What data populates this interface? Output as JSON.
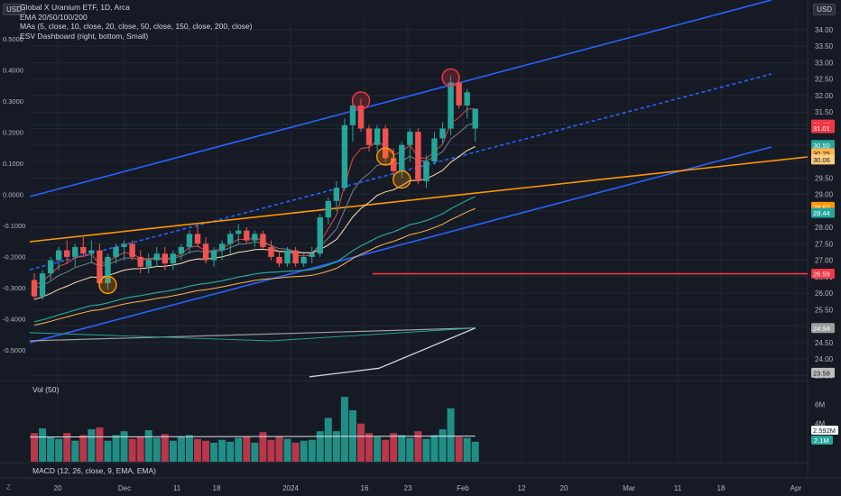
{
  "header": {
    "currency_left": "USD",
    "currency_right": "USD",
    "title": "Global X Uranium ETF, 1D, Arca",
    "indicators": [
      "EMA 20/50/100/200",
      "MAs (5, close, 10, close, 20, close, 50, close, 150, close, 200, close)",
      "ESV Dashboard (right, bottom, Small)"
    ]
  },
  "volume_label": "Vol (50)",
  "macd_label": "MACD (12, 26, close, 9, EMA, EMA)",
  "corner_label": "Z",
  "colors": {
    "background": "#161a25",
    "up": "#26a69a",
    "down": "#ef5350",
    "channel": "#2962ff",
    "trendline": "#ff9800",
    "support": "#f23645",
    "grid": "#222632"
  },
  "chart_data": {
    "type": "candlestick",
    "price_axis": {
      "ticks": [
        "34.00",
        "33.50",
        "33.00",
        "32.50",
        "32.00",
        "31.50",
        "31.00",
        "30.50",
        "30.00",
        "29.50",
        "29.00",
        "28.50",
        "28.00",
        "27.50",
        "27.00",
        "26.50",
        "26.00",
        "25.50",
        "25.00",
        "24.50",
        "24.00",
        "23.50"
      ],
      "range": [
        23.4,
        34.3
      ]
    },
    "left_axis": {
      "ticks": [
        "0.5000",
        "0.4000",
        "0.3000",
        "0.2000",
        "0.1000",
        "0.0000",
        "-0.1000",
        "-0.2000",
        "-0.3000",
        "-0.4000",
        "-0.5000"
      ]
    },
    "time_axis": {
      "ticks": [
        "20",
        "Dec",
        "11",
        "18",
        "2024",
        "16",
        "23",
        "Feb",
        "12",
        "20",
        "Mar",
        "11",
        "18",
        "Apr"
      ]
    },
    "price_labels": [
      {
        "value": 31.12,
        "text": "31.12",
        "color": "#f23645"
      },
      {
        "value": 31.01,
        "text": "31.01",
        "color": "#f23645"
      },
      {
        "value": 30.5,
        "text": "30.50",
        "color": "#26a69a"
      },
      {
        "value": 30.25,
        "text": "30.25",
        "color": "#ffb74d"
      },
      {
        "value": 30.06,
        "text": "30.06",
        "color": "#ffcc80"
      },
      {
        "value": 28.62,
        "text": "28.62",
        "color": "#ff9800"
      },
      {
        "value": 28.44,
        "text": "28.44",
        "color": "#26a69a"
      },
      {
        "value": 26.59,
        "text": "26.59",
        "color": "#f23645"
      },
      {
        "value": 24.94,
        "text": "24.94",
        "color": "#9e9e9e"
      },
      {
        "value": 23.58,
        "text": "23.58",
        "color": "#bdbdbd"
      }
    ],
    "volume_axis": {
      "ticks": [
        "6M",
        "4M"
      ]
    },
    "volume_labels": [
      {
        "text": "2.592M",
        "color": "#ffffff"
      },
      {
        "text": "2.1M",
        "color": "#26a69a"
      }
    ],
    "candles": [
      {
        "o": 26.4,
        "h": 26.6,
        "l": 25.8,
        "c": 25.9
      },
      {
        "o": 25.9,
        "h": 26.7,
        "l": 25.8,
        "c": 26.6
      },
      {
        "o": 26.6,
        "h": 27.1,
        "l": 26.4,
        "c": 27.0
      },
      {
        "o": 27.0,
        "h": 27.4,
        "l": 26.7,
        "c": 27.3
      },
      {
        "o": 27.3,
        "h": 27.6,
        "l": 26.9,
        "c": 27.1
      },
      {
        "o": 27.1,
        "h": 27.5,
        "l": 26.8,
        "c": 27.4
      },
      {
        "o": 27.4,
        "h": 27.7,
        "l": 27.1,
        "c": 27.2
      },
      {
        "o": 27.2,
        "h": 27.6,
        "l": 26.9,
        "c": 27.3
      },
      {
        "o": 27.3,
        "h": 27.5,
        "l": 26.2,
        "c": 26.3
      },
      {
        "o": 26.3,
        "h": 27.2,
        "l": 26.1,
        "c": 27.1
      },
      {
        "o": 27.1,
        "h": 27.5,
        "l": 26.9,
        "c": 27.4
      },
      {
        "o": 27.4,
        "h": 27.6,
        "l": 27.0,
        "c": 27.5
      },
      {
        "o": 27.5,
        "h": 27.6,
        "l": 27.0,
        "c": 27.1
      },
      {
        "o": 27.1,
        "h": 27.3,
        "l": 26.6,
        "c": 26.8
      },
      {
        "o": 26.8,
        "h": 27.2,
        "l": 26.6,
        "c": 27.0
      },
      {
        "o": 27.0,
        "h": 27.4,
        "l": 26.8,
        "c": 27.2
      },
      {
        "o": 27.2,
        "h": 27.4,
        "l": 26.7,
        "c": 26.9
      },
      {
        "o": 26.9,
        "h": 27.3,
        "l": 26.7,
        "c": 27.2
      },
      {
        "o": 27.2,
        "h": 27.5,
        "l": 27.0,
        "c": 27.4
      },
      {
        "o": 27.4,
        "h": 27.9,
        "l": 27.2,
        "c": 27.8
      },
      {
        "o": 27.8,
        "h": 28.1,
        "l": 27.4,
        "c": 27.5
      },
      {
        "o": 27.5,
        "h": 27.7,
        "l": 26.9,
        "c": 27.0
      },
      {
        "o": 27.0,
        "h": 27.4,
        "l": 26.8,
        "c": 27.3
      },
      {
        "o": 27.3,
        "h": 27.6,
        "l": 27.0,
        "c": 27.5
      },
      {
        "o": 27.5,
        "h": 27.9,
        "l": 27.2,
        "c": 27.8
      },
      {
        "o": 27.8,
        "h": 28.1,
        "l": 27.5,
        "c": 27.9
      },
      {
        "o": 27.9,
        "h": 28.0,
        "l": 27.5,
        "c": 27.6
      },
      {
        "o": 27.6,
        "h": 27.9,
        "l": 27.4,
        "c": 27.8
      },
      {
        "o": 27.8,
        "h": 27.9,
        "l": 27.3,
        "c": 27.4
      },
      {
        "o": 27.4,
        "h": 27.6,
        "l": 27.0,
        "c": 27.1
      },
      {
        "o": 27.1,
        "h": 27.3,
        "l": 26.8,
        "c": 26.9
      },
      {
        "o": 26.9,
        "h": 27.4,
        "l": 26.8,
        "c": 27.3
      },
      {
        "o": 27.3,
        "h": 27.4,
        "l": 26.8,
        "c": 26.9
      },
      {
        "o": 26.9,
        "h": 27.2,
        "l": 26.8,
        "c": 27.1
      },
      {
        "o": 27.1,
        "h": 27.4,
        "l": 26.9,
        "c": 27.2
      },
      {
        "o": 27.2,
        "h": 28.4,
        "l": 27.1,
        "c": 28.3
      },
      {
        "o": 28.3,
        "h": 28.9,
        "l": 28.1,
        "c": 28.8
      },
      {
        "o": 28.8,
        "h": 29.4,
        "l": 28.5,
        "c": 29.2
      },
      {
        "o": 29.2,
        "h": 31.3,
        "l": 29.1,
        "c": 31.1
      },
      {
        "o": 31.1,
        "h": 31.9,
        "l": 30.6,
        "c": 31.7
      },
      {
        "o": 31.7,
        "h": 31.9,
        "l": 30.9,
        "c": 31.0
      },
      {
        "o": 31.0,
        "h": 31.1,
        "l": 30.3,
        "c": 30.5
      },
      {
        "o": 30.5,
        "h": 31.1,
        "l": 30.3,
        "c": 31.0
      },
      {
        "o": 31.0,
        "h": 31.1,
        "l": 30.0,
        "c": 30.1
      },
      {
        "o": 30.1,
        "h": 30.4,
        "l": 29.5,
        "c": 29.7
      },
      {
        "o": 29.7,
        "h": 30.6,
        "l": 29.5,
        "c": 30.5
      },
      {
        "o": 30.5,
        "h": 31.0,
        "l": 30.0,
        "c": 30.9
      },
      {
        "o": 30.9,
        "h": 31.0,
        "l": 29.3,
        "c": 29.4
      },
      {
        "o": 29.4,
        "h": 30.2,
        "l": 29.2,
        "c": 30.0
      },
      {
        "o": 30.0,
        "h": 30.9,
        "l": 29.9,
        "c": 30.7
      },
      {
        "o": 30.7,
        "h": 31.2,
        "l": 30.5,
        "c": 31.0
      },
      {
        "o": 31.0,
        "h": 32.6,
        "l": 30.8,
        "c": 32.4
      },
      {
        "o": 32.4,
        "h": 32.6,
        "l": 31.6,
        "c": 31.7
      },
      {
        "o": 31.7,
        "h": 32.2,
        "l": 31.3,
        "c": 32.1
      },
      {
        "o": 31.0,
        "h": 31.6,
        "l": 30.6,
        "c": 31.6
      }
    ],
    "volume": [
      3.0,
      3.5,
      2.6,
      2.4,
      3.0,
      2.2,
      2.8,
      3.4,
      3.6,
      2.2,
      2.8,
      3.2,
      2.4,
      2.6,
      3.3,
      2.5,
      2.9,
      2.2,
      2.6,
      2.8,
      2.4,
      2.2,
      2.0,
      2.3,
      2.1,
      2.5,
      2.6,
      2.0,
      3.1,
      2.3,
      2.7,
      2.4,
      2.0,
      2.2,
      2.3,
      3.2,
      4.6,
      3.2,
      6.8,
      5.4,
      4.0,
      3.0,
      2.6,
      2.3,
      3.0,
      2.8,
      2.5,
      3.2,
      2.4,
      2.8,
      3.4,
      5.6,
      2.6,
      2.5,
      2.1
    ],
    "volume_ma": 2.592,
    "circle_marks": [
      {
        "candle": 9,
        "price": 26.25,
        "color": "#ff9800"
      },
      {
        "candle": 40,
        "price": 31.85,
        "color": "#f23645"
      },
      {
        "candle": 43,
        "price": 30.15,
        "color": "#ff9800"
      },
      {
        "candle": 45,
        "price": 29.45,
        "color": "#ff9800"
      },
      {
        "candle": 51,
        "price": 32.55,
        "color": "#f23645"
      }
    ],
    "support_level": 26.59
  }
}
